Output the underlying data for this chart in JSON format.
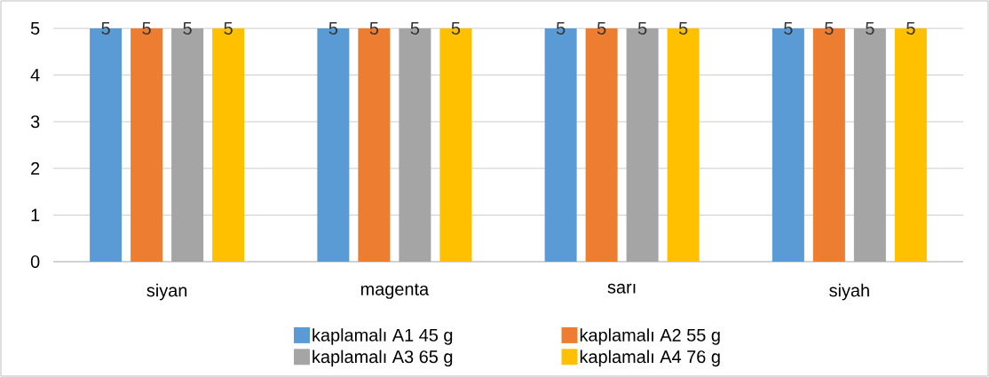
{
  "chart_data": {
    "type": "bar",
    "categories": [
      "siyan",
      "magenta",
      "sarı",
      "siyah"
    ],
    "series": [
      {
        "name": "kaplamalı A1 45 g",
        "color": "#5b9bd5",
        "values": [
          5,
          5,
          5,
          5
        ]
      },
      {
        "name": "kaplamalı A2 55 g",
        "color": "#ed7d31",
        "values": [
          5,
          5,
          5,
          5
        ]
      },
      {
        "name": "kaplamalı A3 65 g",
        "color": "#a5a5a5",
        "values": [
          5,
          5,
          5,
          5
        ]
      },
      {
        "name": "kaplamalı A4 76 g",
        "color": "#ffc000",
        "values": [
          5,
          5,
          5,
          5
        ]
      }
    ],
    "ylim": [
      0,
      5
    ],
    "yticks": [
      0,
      1,
      2,
      3,
      4,
      5
    ],
    "grid": "y",
    "legend": "bottom",
    "data_labels": true
  }
}
